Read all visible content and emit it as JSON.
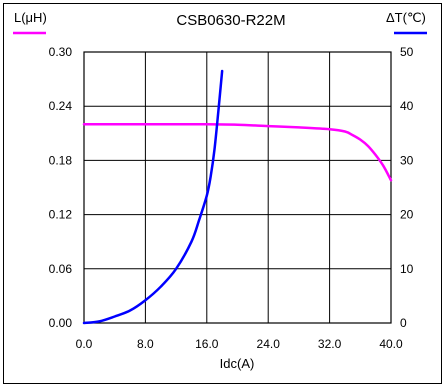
{
  "chart_data": {
    "type": "line",
    "title": "CSB0630-R22M",
    "xlabel": "Idc(A)",
    "ylabel_left": "L(μH)",
    "ylabel_right": "ΔT(℃)",
    "xlim": [
      0,
      40
    ],
    "ylim_left": [
      0,
      0.3
    ],
    "ylim_right": [
      0,
      50
    ],
    "x_ticks": [
      "0.0",
      "8.0",
      "16.0",
      "24.0",
      "32.0",
      "40.0"
    ],
    "y_left_ticks": [
      "0.00",
      "0.06",
      "0.12",
      "0.18",
      "0.24",
      "0.30"
    ],
    "y_right_ticks": [
      "0",
      "10",
      "20",
      "30",
      "40",
      "50"
    ],
    "grid": true,
    "series": [
      {
        "name": "L(μH)",
        "axis": "left",
        "color": "#ff00ff",
        "x": [
          0,
          4,
          8,
          12,
          16,
          20,
          24,
          28,
          32,
          34,
          35,
          36,
          37,
          38,
          39,
          40
        ],
        "y": [
          0.22,
          0.22,
          0.22,
          0.22,
          0.22,
          0.2195,
          0.218,
          0.2165,
          0.2145,
          0.212,
          0.208,
          0.203,
          0.196,
          0.186,
          0.174,
          0.158
        ]
      },
      {
        "name": "ΔT(℃)",
        "axis": "right",
        "color": "#0000ff",
        "x": [
          0,
          2,
          4,
          6,
          8,
          10,
          12,
          14,
          15,
          16,
          16.5,
          17,
          17.5,
          18
        ],
        "y": [
          0,
          0.3,
          1.2,
          2.3,
          4.2,
          6.7,
          10.0,
          15.0,
          19.0,
          23.5,
          27.0,
          32.0,
          39.0,
          46.5
        ]
      }
    ]
  }
}
